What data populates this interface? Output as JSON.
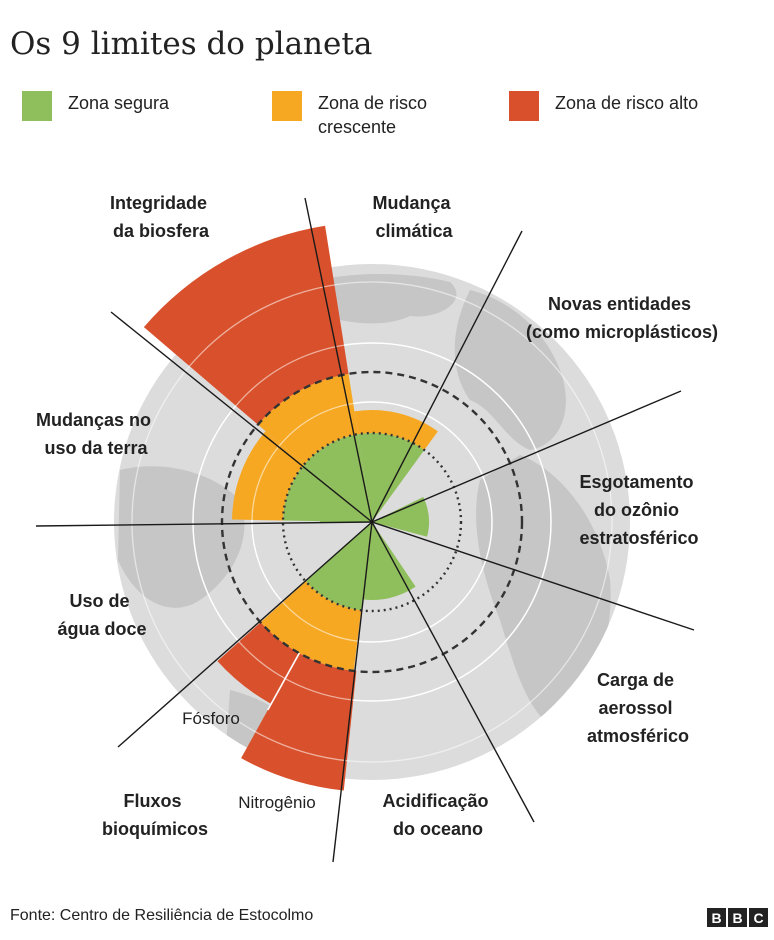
{
  "title": "Os 9 limites do planeta",
  "legend": [
    {
      "color": "#8fbe5c",
      "lines": [
        "Zona segura"
      ]
    },
    {
      "color": "#f7a823",
      "lines": [
        "Zona de risco",
        "crescente"
      ]
    },
    {
      "color": "#d9512c",
      "lines": [
        "Zona de risco alto"
      ]
    }
  ],
  "boundaries": [
    {
      "lines": [
        "Integridade",
        "da biosfera"
      ],
      "zone": "risco alto"
    },
    {
      "lines": [
        "Mudança",
        "climática"
      ],
      "zone": "risco crescente"
    },
    {
      "lines": [
        "Novas entidades",
        "(como microplásticos)"
      ],
      "zone": ""
    },
    {
      "lines": [
        "Esgotamento",
        "do ozônio",
        "estratosférico"
      ],
      "zone": "segura"
    },
    {
      "lines": [
        "Carga de",
        "aerossol",
        "atmosférico"
      ],
      "zone": ""
    },
    {
      "lines": [
        "Acidificação",
        "do oceano"
      ],
      "zone": "segura"
    },
    {
      "lines": [
        "Fluxos",
        "bioquímicos"
      ],
      "zone": "risco alto",
      "sub": [
        "Fósforo",
        "Nitrogênio"
      ]
    },
    {
      "lines": [
        "Uso de",
        "água doce"
      ],
      "zone": "segura"
    },
    {
      "lines": [
        "Mudanças no",
        "uso da terra"
      ],
      "zone": "risco crescente"
    }
  ],
  "source": "Fonte: Centro de Resiliência de Estocolmo",
  "logo": [
    "B",
    "B",
    "C"
  ],
  "colors": {
    "safe": "#8fbe5c",
    "increasing": "#f7a823",
    "high": "#d9512c",
    "globe": "#dcdcdc",
    "land": "#c6c6c6"
  }
}
